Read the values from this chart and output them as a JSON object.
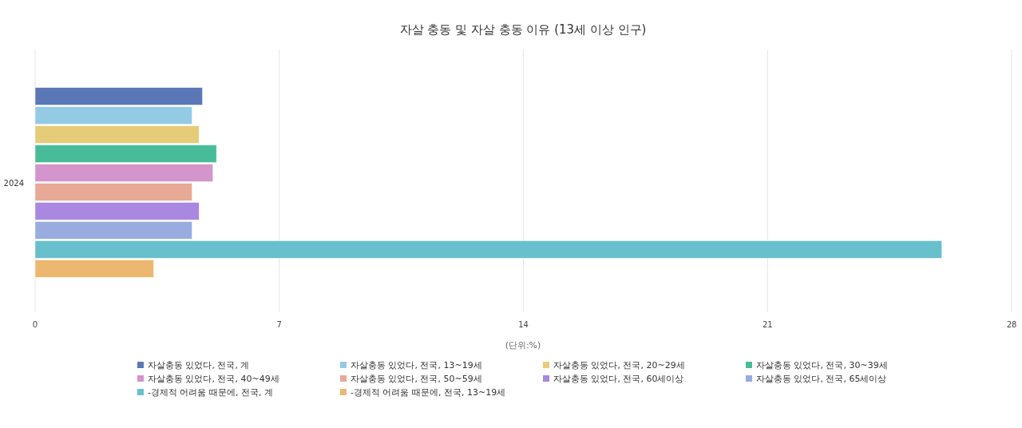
{
  "chart_data": {
    "type": "bar",
    "orientation": "horizontal",
    "title": "자살 충동 및 자살 충동 이유 (13세 이상 인구)",
    "xlabel": "(단위:%)",
    "categories": [
      "2024"
    ],
    "xlim": [
      0,
      28
    ],
    "xticks": [
      0,
      7,
      14,
      21,
      28
    ],
    "grid": "x",
    "legend": "bottom",
    "series": [
      {
        "name": "자살충동 있었다, 전국, 계",
        "color": "#5a78b8",
        "values": [
          4.8
        ]
      },
      {
        "name": "자살충동 있었다, 전국, 13~19세",
        "color": "#94cbe4",
        "values": [
          4.5
        ]
      },
      {
        "name": "자살충동 있었다, 전국, 20~29세",
        "color": "#e6cc78",
        "values": [
          4.7
        ]
      },
      {
        "name": "자살충동 있었다, 전국, 30~39세",
        "color": "#48bc98",
        "values": [
          5.2
        ]
      },
      {
        "name": "자살충동 있었다, 전국, 40~49세",
        "color": "#d494cc",
        "values": [
          5.1
        ]
      },
      {
        "name": "자살충동 있었다, 전국, 50~59세",
        "color": "#e8a896",
        "values": [
          4.5
        ]
      },
      {
        "name": "자살충동 있었다, 전국, 60세이상",
        "color": "#a888e0",
        "values": [
          4.7
        ]
      },
      {
        "name": "자살충동 있었다, 전국, 65세이상",
        "color": "#98ace0",
        "values": [
          4.5
        ]
      },
      {
        "name": "-경제적 어려움 때문에, 전국, 계",
        "color": "#68c0cc",
        "values": [
          26.0
        ]
      },
      {
        "name": "-경제적 어려움 때문에, 전국, 13~19세",
        "color": "#ecb870",
        "values": [
          3.4
        ]
      }
    ]
  }
}
